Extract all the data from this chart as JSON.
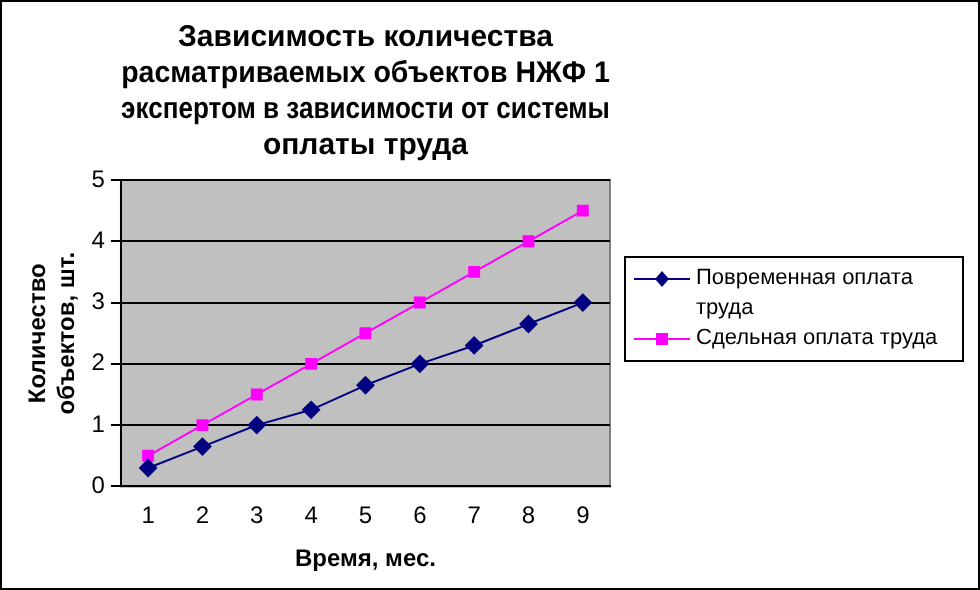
{
  "chart_data": {
    "type": "line",
    "title": "Зависимость количества расматриваемых объектов НЖФ 1 экспертом в зависимости от системы оплаты труда",
    "xlabel": "Время, мес.",
    "ylabel": "Количество объектов, шт.",
    "categories": [
      "1",
      "2",
      "3",
      "4",
      "5",
      "6",
      "7",
      "8",
      "9"
    ],
    "series": [
      {
        "name": "Повременная оплата труда",
        "color": "#000080",
        "marker": "diamond",
        "values": [
          0.3,
          0.65,
          1,
          1.25,
          1.65,
          2,
          2.3,
          2.65,
          3
        ]
      },
      {
        "name": "Сдельная оплата труда",
        "color": "#ff00ff",
        "marker": "square",
        "values": [
          0.5,
          1,
          1.5,
          2,
          2.5,
          3,
          3.5,
          4,
          4.5
        ]
      }
    ],
    "ylim": [
      0,
      5
    ],
    "yticks": [
      0,
      1,
      2,
      3,
      4,
      5
    ],
    "grid": "y",
    "legend": "right"
  }
}
